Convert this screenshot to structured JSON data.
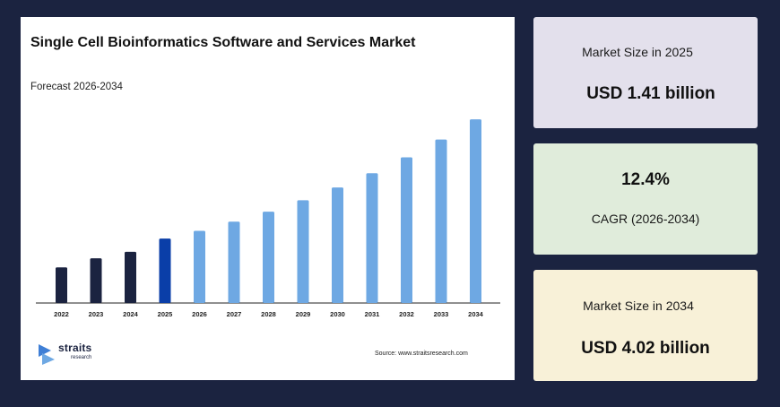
{
  "chart_data": {
    "type": "bar",
    "title": "Single Cell Bioinformatics Software and Services Market",
    "subtitle": "Forecast 2026-2034",
    "categories": [
      "2022",
      "2023",
      "2024",
      "2025",
      "2026",
      "2027",
      "2028",
      "2029",
      "2030",
      "2031",
      "2032",
      "2033",
      "2034"
    ],
    "values": [
      0.78,
      0.98,
      1.12,
      1.41,
      1.58,
      1.78,
      2.0,
      2.25,
      2.53,
      2.84,
      3.19,
      3.58,
      4.02
    ],
    "bar_colors": [
      "#1b2340",
      "#1b2340",
      "#1b2340",
      "#0a3ea8",
      "#6ea8e3",
      "#6ea8e3",
      "#6ea8e3",
      "#6ea8e3",
      "#6ea8e3",
      "#6ea8e3",
      "#6ea8e3",
      "#6ea8e3",
      "#6ea8e3"
    ],
    "xlabel": "",
    "ylabel": "",
    "ylim": [
      0,
      4.2
    ],
    "grid": false,
    "source": "Source: www.straitsresearch.com"
  },
  "logo": {
    "name": "straits",
    "sub": "research"
  },
  "stats": {
    "size_2025": {
      "label": "Market Size in 2025",
      "value": "USD 1.41 billion"
    },
    "cagr": {
      "value": "12.4%",
      "label": "CAGR (2026-2034)"
    },
    "size_2034": {
      "label": "Market Size in 2034",
      "value": "USD 4.02 billion"
    }
  },
  "colors": {
    "background": "#1b2340",
    "historic": "#1b2340",
    "base_year": "#0a3ea8",
    "forecast": "#6ea8e3"
  }
}
